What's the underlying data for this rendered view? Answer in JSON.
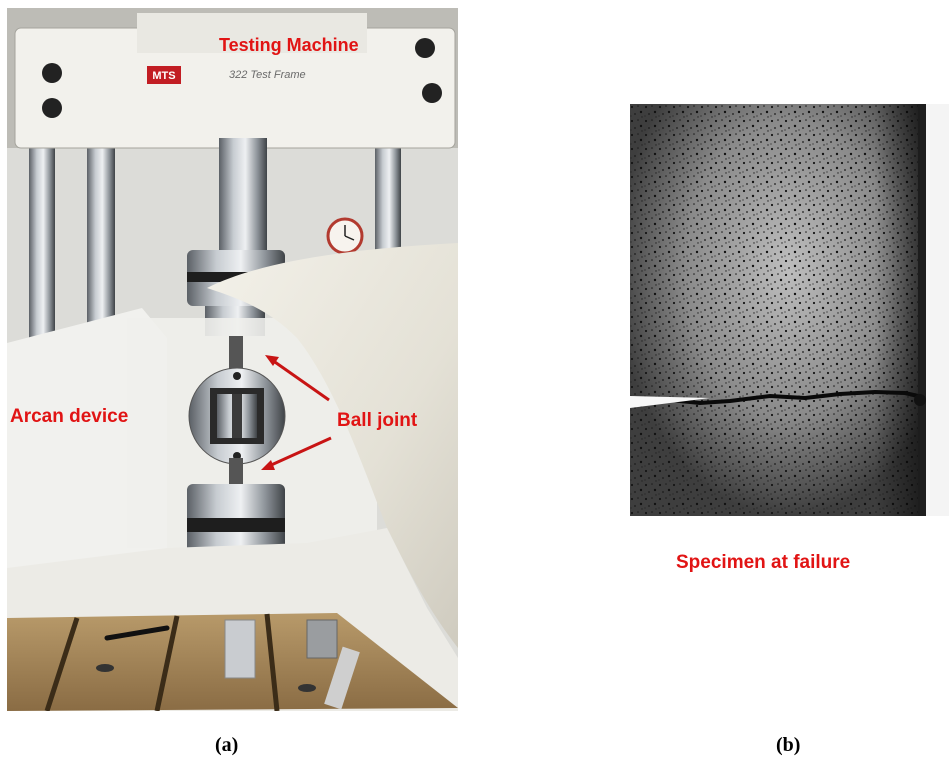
{
  "panel_a": {
    "labels": {
      "testing_machine": "Testing Machine",
      "arcan_device": "Arcan device",
      "ball_joint": "Ball joint"
    },
    "frame_logo": "MTS",
    "frame_model": "322 Test Frame"
  },
  "panel_b": {
    "label": "Specimen at failure"
  },
  "captions": {
    "a": "(a)",
    "b": "(b)"
  },
  "colors": {
    "annotation": "#e11414",
    "arrow": "#c81414"
  }
}
